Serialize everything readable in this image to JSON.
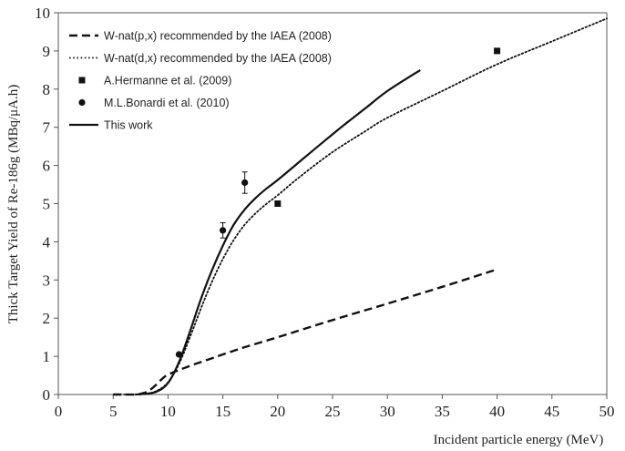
{
  "chart_data": {
    "type": "line",
    "title": "",
    "xlabel": "Incident particle energy (MeV)",
    "ylabel": "Thick Target Yield of Re-186g (MBq/μA.h)",
    "xlim": [
      0,
      50
    ],
    "ylim": [
      0,
      10
    ],
    "x_ticks": [
      "0",
      "5",
      "10",
      "15",
      "20",
      "25",
      "30",
      "35",
      "40",
      "45",
      "50"
    ],
    "y_ticks": [
      "0",
      "1",
      "2",
      "3",
      "4",
      "5",
      "6",
      "7",
      "8",
      "9",
      "10"
    ],
    "grid": false,
    "legend_position": "top-left",
    "series": [
      {
        "name": "W-nat(p,x) recommended by the IAEA (2008)",
        "kind": "line",
        "style": "dashed",
        "color": "#111111",
        "x": [
          5,
          6,
          7,
          7.5,
          8,
          8.5,
          9,
          9.5,
          10,
          11,
          12,
          13,
          14,
          15,
          17,
          20,
          25,
          30,
          35,
          40
        ],
        "y": [
          0,
          0,
          0,
          0.02,
          0.06,
          0.15,
          0.28,
          0.42,
          0.52,
          0.64,
          0.75,
          0.85,
          0.95,
          1.05,
          1.24,
          1.5,
          1.95,
          2.38,
          2.82,
          3.28
        ]
      },
      {
        "name": "W-nat(d,x) recommended by the IAEA (2008)",
        "kind": "line",
        "style": "dotted",
        "color": "#111111",
        "x": [
          6,
          7,
          8,
          9,
          10,
          11,
          12,
          13,
          14,
          15,
          16,
          17,
          18,
          19,
          20,
          22,
          25,
          28,
          30,
          35,
          40,
          45,
          50
        ],
        "y": [
          0,
          0,
          0.02,
          0.1,
          0.32,
          0.8,
          1.5,
          2.25,
          2.95,
          3.55,
          4.05,
          4.45,
          4.75,
          5.0,
          5.22,
          5.7,
          6.35,
          6.9,
          7.25,
          7.95,
          8.65,
          9.25,
          9.85
        ]
      },
      {
        "name": "A.Hermanne et al. (2009)",
        "kind": "marker",
        "marker": "square",
        "color": "#111111",
        "x": [
          20,
          40
        ],
        "y": [
          5.0,
          9.0
        ]
      },
      {
        "name": "M.L.Bonardi et al. (2010)",
        "kind": "marker",
        "marker": "circle",
        "color": "#111111",
        "x": [
          11,
          15,
          17
        ],
        "y": [
          1.05,
          4.3,
          5.55
        ],
        "yerr": [
          0,
          0.2,
          0.28
        ]
      },
      {
        "name": "This work",
        "kind": "line",
        "style": "solid",
        "color": "#111111",
        "x": [
          7,
          8,
          9,
          10,
          11,
          12,
          13,
          14,
          15,
          16,
          17,
          18,
          19,
          20,
          22,
          24,
          26,
          28,
          30,
          33
        ],
        "y": [
          0,
          0.02,
          0.08,
          0.3,
          0.85,
          1.65,
          2.5,
          3.25,
          3.9,
          4.45,
          4.85,
          5.15,
          5.4,
          5.62,
          6.1,
          6.58,
          7.05,
          7.5,
          7.95,
          8.5
        ]
      }
    ]
  }
}
